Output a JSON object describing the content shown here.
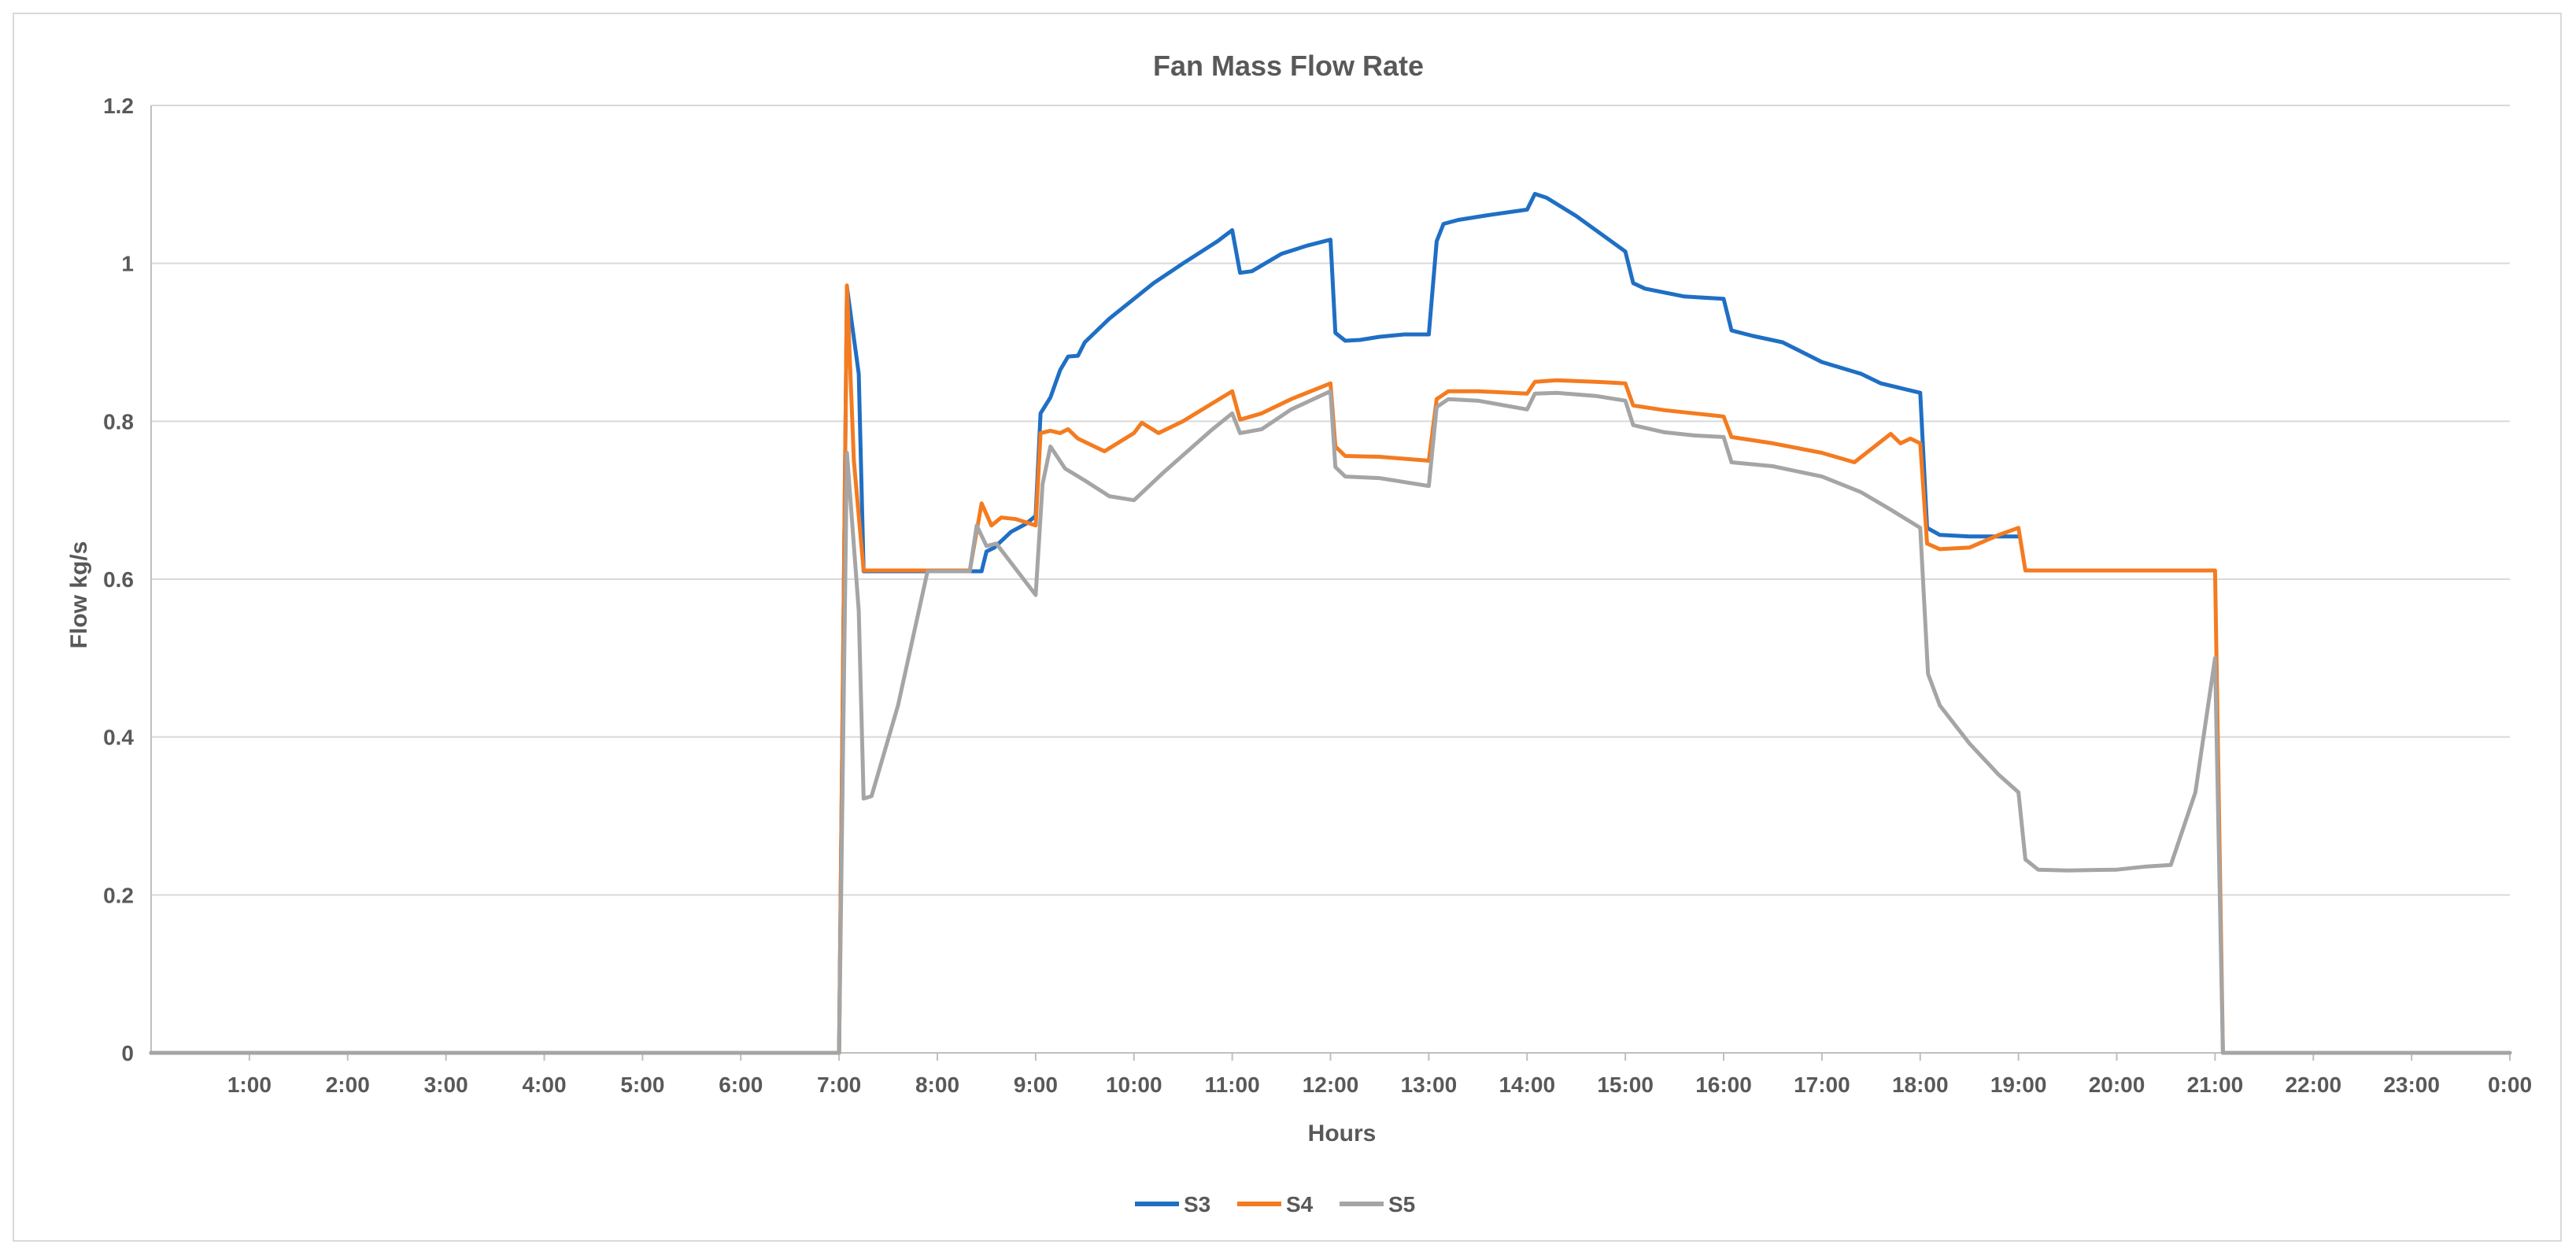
{
  "chart_data": {
    "type": "line",
    "title": "Fan Mass Flow Rate",
    "xlabel": "Hours",
    "ylabel": "Flow kg/s",
    "xlim": [
      0,
      24
    ],
    "ylim": [
      0,
      1.2
    ],
    "y_ticks": [
      "0",
      "0.2",
      "0.4",
      "0.6",
      "0.8",
      "1",
      "1.2"
    ],
    "x_ticks": [
      "1:00",
      "2:00",
      "3:00",
      "4:00",
      "5:00",
      "6:00",
      "7:00",
      "8:00",
      "9:00",
      "10:00",
      "11:00",
      "12:00",
      "13:00",
      "14:00",
      "15:00",
      "16:00",
      "17:00",
      "18:00",
      "19:00",
      "20:00",
      "21:00",
      "22:00",
      "23:00",
      "0:00"
    ],
    "grid": true,
    "legend_position": "bottom",
    "series": [
      {
        "name": "S3",
        "color": "#1f6fc4",
        "points": [
          [
            0,
            0
          ],
          [
            7.0,
            0
          ],
          [
            7.08,
            0.97
          ],
          [
            7.2,
            0.86
          ],
          [
            7.25,
            0.61
          ],
          [
            8.33,
            0.61
          ],
          [
            8.45,
            0.61
          ],
          [
            8.5,
            0.635
          ],
          [
            8.58,
            0.64
          ],
          [
            8.75,
            0.66
          ],
          [
            8.9,
            0.67
          ],
          [
            9.0,
            0.68
          ],
          [
            9.05,
            0.81
          ],
          [
            9.15,
            0.83
          ],
          [
            9.25,
            0.865
          ],
          [
            9.33,
            0.882
          ],
          [
            9.43,
            0.883
          ],
          [
            9.5,
            0.9
          ],
          [
            9.75,
            0.93
          ],
          [
            10.0,
            0.955
          ],
          [
            10.2,
            0.975
          ],
          [
            10.5,
            1.0
          ],
          [
            10.85,
            1.028
          ],
          [
            11.0,
            1.042
          ],
          [
            11.08,
            0.988
          ],
          [
            11.2,
            0.99
          ],
          [
            11.5,
            1.012
          ],
          [
            11.75,
            1.022
          ],
          [
            12.0,
            1.03
          ],
          [
            12.05,
            0.912
          ],
          [
            12.15,
            0.902
          ],
          [
            12.3,
            0.903
          ],
          [
            12.5,
            0.907
          ],
          [
            12.75,
            0.91
          ],
          [
            13.0,
            0.91
          ],
          [
            13.08,
            1.028
          ],
          [
            13.15,
            1.05
          ],
          [
            13.3,
            1.055
          ],
          [
            13.6,
            1.061
          ],
          [
            14.0,
            1.068
          ],
          [
            14.08,
            1.088
          ],
          [
            14.2,
            1.083
          ],
          [
            14.5,
            1.06
          ],
          [
            15.0,
            1.015
          ],
          [
            15.08,
            0.975
          ],
          [
            15.2,
            0.968
          ],
          [
            15.6,
            0.958
          ],
          [
            16.0,
            0.955
          ],
          [
            16.08,
            0.915
          ],
          [
            16.3,
            0.908
          ],
          [
            16.6,
            0.9
          ],
          [
            17.0,
            0.875
          ],
          [
            17.4,
            0.86
          ],
          [
            17.6,
            0.848
          ],
          [
            18.0,
            0.836
          ],
          [
            18.07,
            0.665
          ],
          [
            18.2,
            0.656
          ],
          [
            18.5,
            0.654
          ],
          [
            19.0,
            0.654
          ]
        ]
      },
      {
        "name": "S4",
        "color": "#f47b20",
        "points": [
          [
            0,
            0
          ],
          [
            7.0,
            0
          ],
          [
            7.08,
            0.972
          ],
          [
            7.15,
            0.75
          ],
          [
            7.25,
            0.611
          ],
          [
            8.0,
            0.611
          ],
          [
            8.33,
            0.611
          ],
          [
            8.45,
            0.696
          ],
          [
            8.55,
            0.668
          ],
          [
            8.65,
            0.678
          ],
          [
            8.8,
            0.676
          ],
          [
            9.0,
            0.668
          ],
          [
            9.05,
            0.785
          ],
          [
            9.15,
            0.788
          ],
          [
            9.25,
            0.785
          ],
          [
            9.33,
            0.79
          ],
          [
            9.43,
            0.778
          ],
          [
            9.7,
            0.762
          ],
          [
            10.0,
            0.785
          ],
          [
            10.08,
            0.798
          ],
          [
            10.25,
            0.785
          ],
          [
            10.5,
            0.8
          ],
          [
            11.0,
            0.838
          ],
          [
            11.08,
            0.802
          ],
          [
            11.3,
            0.81
          ],
          [
            11.6,
            0.828
          ],
          [
            12.0,
            0.848
          ],
          [
            12.05,
            0.768
          ],
          [
            12.15,
            0.756
          ],
          [
            12.5,
            0.755
          ],
          [
            13.0,
            0.75
          ],
          [
            13.08,
            0.828
          ],
          [
            13.2,
            0.838
          ],
          [
            13.5,
            0.838
          ],
          [
            14.0,
            0.835
          ],
          [
            14.08,
            0.85
          ],
          [
            14.3,
            0.852
          ],
          [
            14.7,
            0.85
          ],
          [
            15.0,
            0.848
          ],
          [
            15.08,
            0.82
          ],
          [
            15.4,
            0.814
          ],
          [
            15.7,
            0.81
          ],
          [
            16.0,
            0.806
          ],
          [
            16.08,
            0.78
          ],
          [
            16.5,
            0.772
          ],
          [
            17.0,
            0.76
          ],
          [
            17.33,
            0.748
          ],
          [
            17.7,
            0.784
          ],
          [
            17.8,
            0.772
          ],
          [
            17.9,
            0.778
          ],
          [
            18.0,
            0.772
          ],
          [
            18.07,
            0.645
          ],
          [
            18.2,
            0.638
          ],
          [
            18.5,
            0.64
          ],
          [
            18.8,
            0.656
          ],
          [
            19.0,
            0.665
          ],
          [
            19.07,
            0.611
          ],
          [
            20.0,
            0.611
          ],
          [
            21.0,
            0.611
          ],
          [
            21.08,
            0
          ]
        ]
      },
      {
        "name": "S5",
        "color": "#a5a5a5",
        "points": [
          [
            0,
            0
          ],
          [
            7.0,
            0
          ],
          [
            7.08,
            0.76
          ],
          [
            7.2,
            0.56
          ],
          [
            7.25,
            0.322
          ],
          [
            7.33,
            0.325
          ],
          [
            7.6,
            0.44
          ],
          [
            7.9,
            0.61
          ],
          [
            8.33,
            0.61
          ],
          [
            8.4,
            0.668
          ],
          [
            8.5,
            0.642
          ],
          [
            8.6,
            0.645
          ],
          [
            9.0,
            0.58
          ],
          [
            9.07,
            0.72
          ],
          [
            9.15,
            0.768
          ],
          [
            9.3,
            0.74
          ],
          [
            9.5,
            0.725
          ],
          [
            9.75,
            0.705
          ],
          [
            10.0,
            0.7
          ],
          [
            10.3,
            0.735
          ],
          [
            10.6,
            0.768
          ],
          [
            10.8,
            0.79
          ],
          [
            11.0,
            0.81
          ],
          [
            11.08,
            0.785
          ],
          [
            11.3,
            0.79
          ],
          [
            11.6,
            0.815
          ],
          [
            12.0,
            0.838
          ],
          [
            12.05,
            0.742
          ],
          [
            12.15,
            0.73
          ],
          [
            12.5,
            0.728
          ],
          [
            13.0,
            0.718
          ],
          [
            13.08,
            0.818
          ],
          [
            13.2,
            0.828
          ],
          [
            13.5,
            0.826
          ],
          [
            14.0,
            0.815
          ],
          [
            14.08,
            0.835
          ],
          [
            14.3,
            0.836
          ],
          [
            14.7,
            0.832
          ],
          [
            15.0,
            0.826
          ],
          [
            15.08,
            0.795
          ],
          [
            15.4,
            0.786
          ],
          [
            15.7,
            0.782
          ],
          [
            16.0,
            0.78
          ],
          [
            16.08,
            0.748
          ],
          [
            16.5,
            0.743
          ],
          [
            17.0,
            0.73
          ],
          [
            17.4,
            0.71
          ],
          [
            17.7,
            0.688
          ],
          [
            18.0,
            0.665
          ],
          [
            18.08,
            0.48
          ],
          [
            18.2,
            0.44
          ],
          [
            18.5,
            0.392
          ],
          [
            18.8,
            0.352
          ],
          [
            19.0,
            0.33
          ],
          [
            19.07,
            0.245
          ],
          [
            19.2,
            0.232
          ],
          [
            19.5,
            0.231
          ],
          [
            20.0,
            0.232
          ],
          [
            20.3,
            0.236
          ],
          [
            20.55,
            0.238
          ],
          [
            20.8,
            0.33
          ],
          [
            21.0,
            0.5
          ],
          [
            21.08,
            0
          ],
          [
            24.0,
            0
          ]
        ]
      }
    ]
  }
}
